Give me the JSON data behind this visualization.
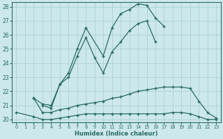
{
  "xlabel": "Humidex (Indice chaleur)",
  "bg_color": "#cce8ec",
  "grid_color": "#b0d4d8",
  "line_color": "#2a6b60",
  "xlim": [
    -0.5,
    23.5
  ],
  "ylim": [
    19.8,
    28.3
  ],
  "xticks": [
    0,
    1,
    2,
    3,
    4,
    5,
    6,
    7,
    8,
    9,
    10,
    11,
    12,
    13,
    14,
    15,
    16,
    17,
    18,
    19,
    20,
    21,
    22,
    23
  ],
  "yticks": [
    20,
    21,
    22,
    23,
    24,
    25,
    26,
    27,
    28
  ],
  "lines": [
    {
      "x": [
        3,
        4,
        5,
        6,
        7,
        8,
        10,
        11,
        12,
        13,
        14,
        15,
        16,
        17
      ],
      "y": [
        21.0,
        20.8,
        22.5,
        23.3,
        25.0,
        26.5,
        24.5,
        26.5,
        27.5,
        27.8,
        28.2,
        28.1,
        27.2,
        26.6
      ]
    },
    {
      "x": [
        2,
        3,
        4,
        5,
        6,
        7,
        8,
        9,
        10,
        11,
        12,
        13,
        14,
        15,
        16
      ],
      "y": [
        21.5,
        21.1,
        21.0,
        22.5,
        23.0,
        24.5,
        25.8,
        24.4,
        23.3,
        24.8,
        25.5,
        26.3,
        26.8,
        27.0,
        25.5
      ]
    },
    {
      "x": [
        2,
        3,
        4,
        5,
        6,
        7,
        8,
        9,
        10,
        11,
        12,
        13,
        14,
        15,
        16,
        17,
        18,
        19,
        20,
        21,
        22,
        23
      ],
      "y": [
        21.5,
        20.5,
        20.5,
        20.7,
        20.8,
        21.0,
        21.1,
        21.2,
        21.3,
        21.5,
        21.6,
        21.8,
        22.0,
        22.1,
        22.2,
        22.3,
        22.3,
        22.3,
        22.2,
        21.3,
        20.5,
        20.1
      ]
    },
    {
      "x": [
        0,
        2,
        3,
        4,
        5,
        6,
        7,
        8,
        9,
        10,
        11,
        12,
        13,
        14,
        15,
        16,
        17,
        18,
        19,
        20,
        21,
        22,
        23
      ],
      "y": [
        20.5,
        20.2,
        20.0,
        20.0,
        20.1,
        20.2,
        20.3,
        20.4,
        20.4,
        20.4,
        20.4,
        20.4,
        20.4,
        20.4,
        20.4,
        20.4,
        20.4,
        20.5,
        20.5,
        20.4,
        20.2,
        20.0,
        20.0
      ]
    }
  ]
}
